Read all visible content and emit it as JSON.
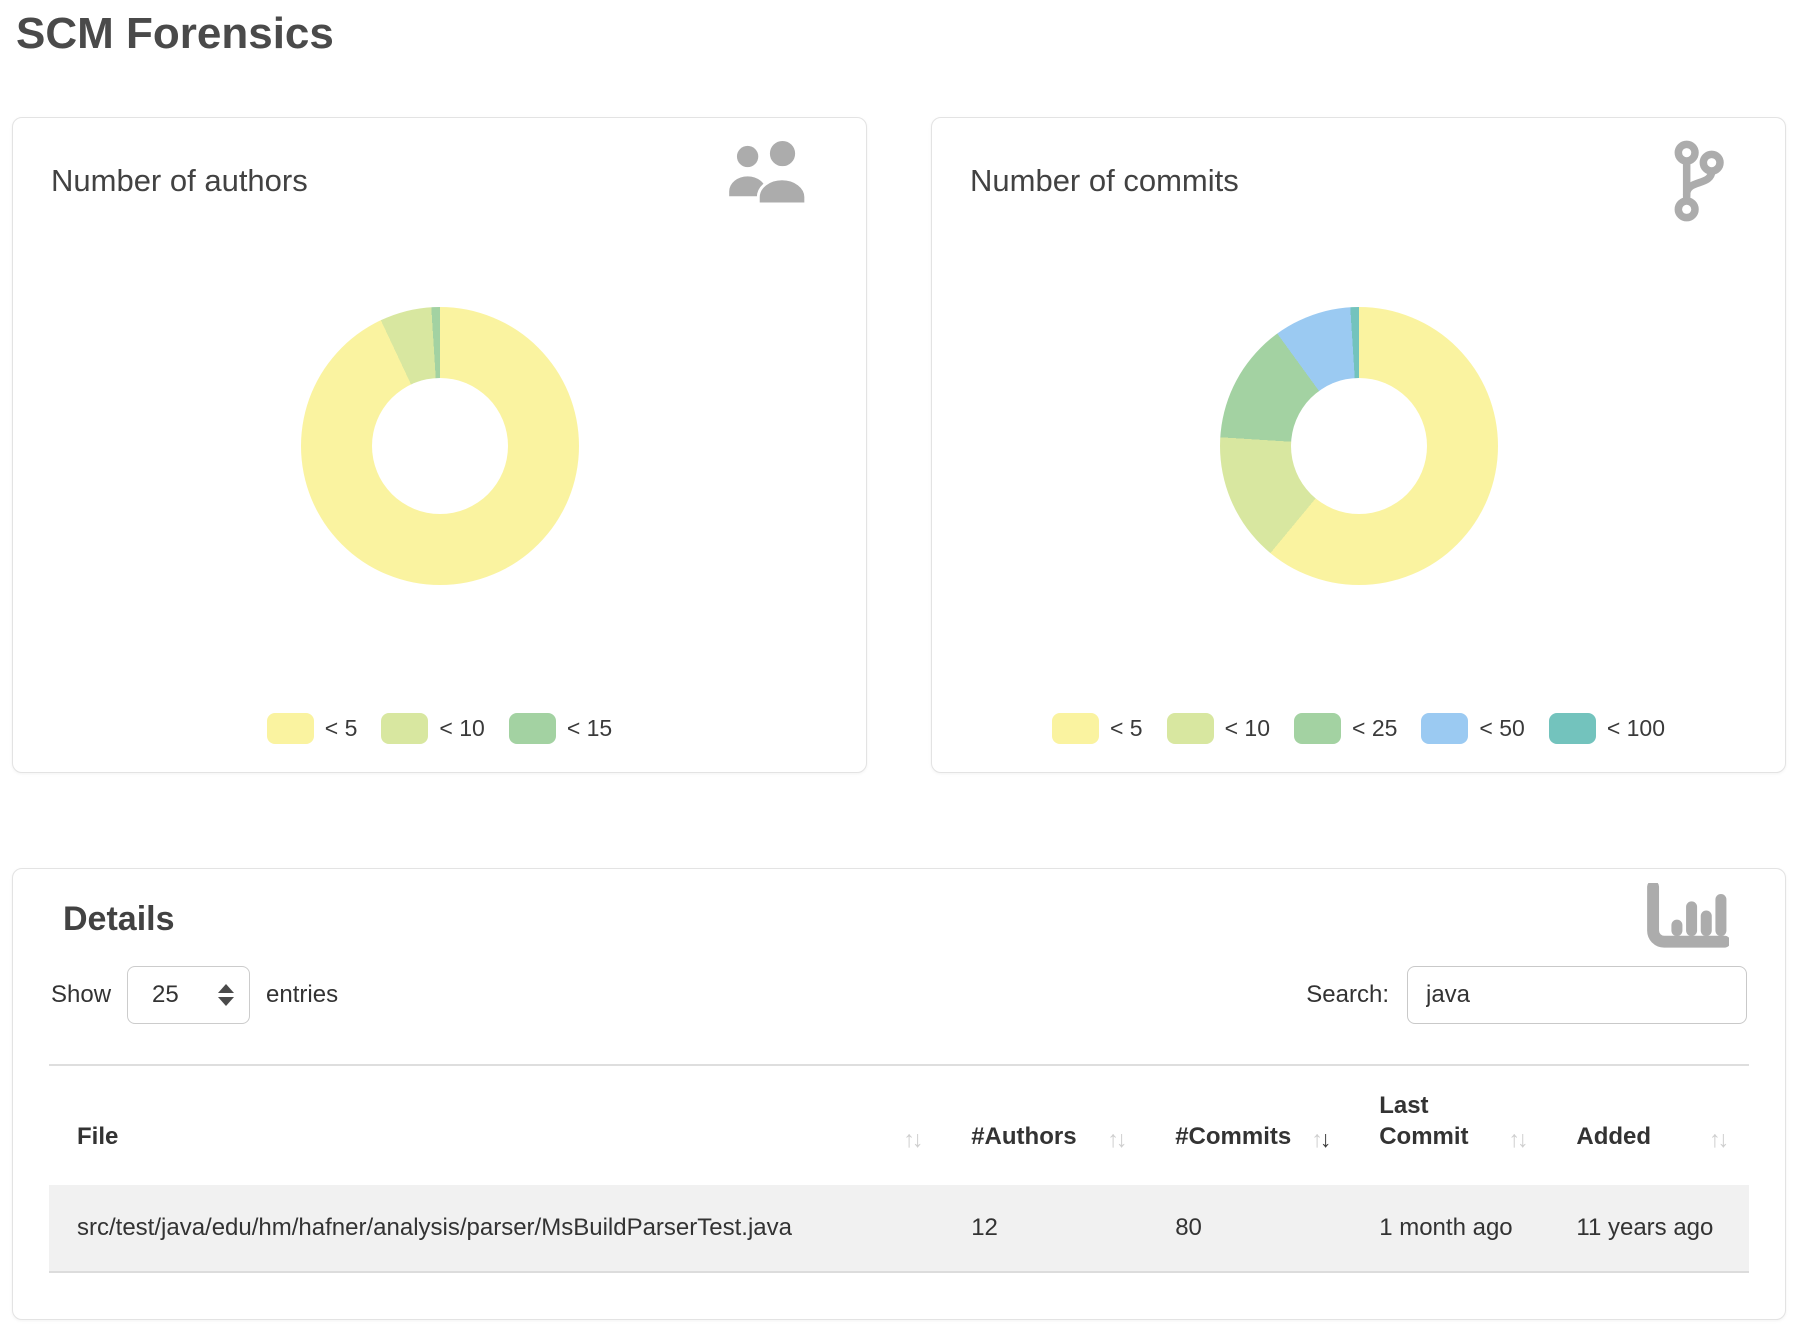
{
  "page": {
    "title": "SCM Forensics"
  },
  "hero_cards": [
    {
      "title": "Number of authors",
      "icon": "users-icon"
    },
    {
      "title": "Number of commits",
      "icon": "git-branch-icon"
    }
  ],
  "chart_data": [
    {
      "type": "pie",
      "donut": true,
      "title": "Number of authors",
      "legend_position": "bottom",
      "labels": [
        "< 5",
        "< 10",
        "< 15"
      ],
      "values_percent": [
        93,
        6,
        1
      ],
      "colors": [
        "#FAF3A0",
        "#D8E7A0",
        "#A3D2A2"
      ],
      "inner_radius_ratio": 0.49
    },
    {
      "type": "pie",
      "donut": true,
      "title": "Number of commits",
      "legend_position": "bottom",
      "labels": [
        "< 5",
        "< 10",
        "< 25",
        "< 50",
        "< 100"
      ],
      "values_percent": [
        61,
        15,
        14,
        9,
        1
      ],
      "colors": [
        "#FAF3A0",
        "#D8E7A0",
        "#A3D2A2",
        "#9BCAF2",
        "#73C3BD"
      ],
      "inner_radius_ratio": 0.49
    }
  ],
  "details": {
    "title": "Details",
    "icon": "bar-chart-icon",
    "show_label": "Show",
    "entries_label": "entries",
    "page_size": "25",
    "search_label": "Search:",
    "search_value": "java",
    "table": {
      "columns": [
        {
          "label": "File",
          "sort": "none"
        },
        {
          "label": "#Authors",
          "sort": "none"
        },
        {
          "label": "#Commits",
          "sort": "desc"
        },
        {
          "label": "Last Commit",
          "sort": "none"
        },
        {
          "label": "Added",
          "sort": "none"
        }
      ],
      "rows": [
        {
          "file": "src/test/java/edu/hm/hafner/analysis/parser/MsBuildParserTest.java",
          "authors": "12",
          "commits": "80",
          "last_commit": "1 month ago",
          "added": "11 years ago"
        }
      ]
    }
  }
}
